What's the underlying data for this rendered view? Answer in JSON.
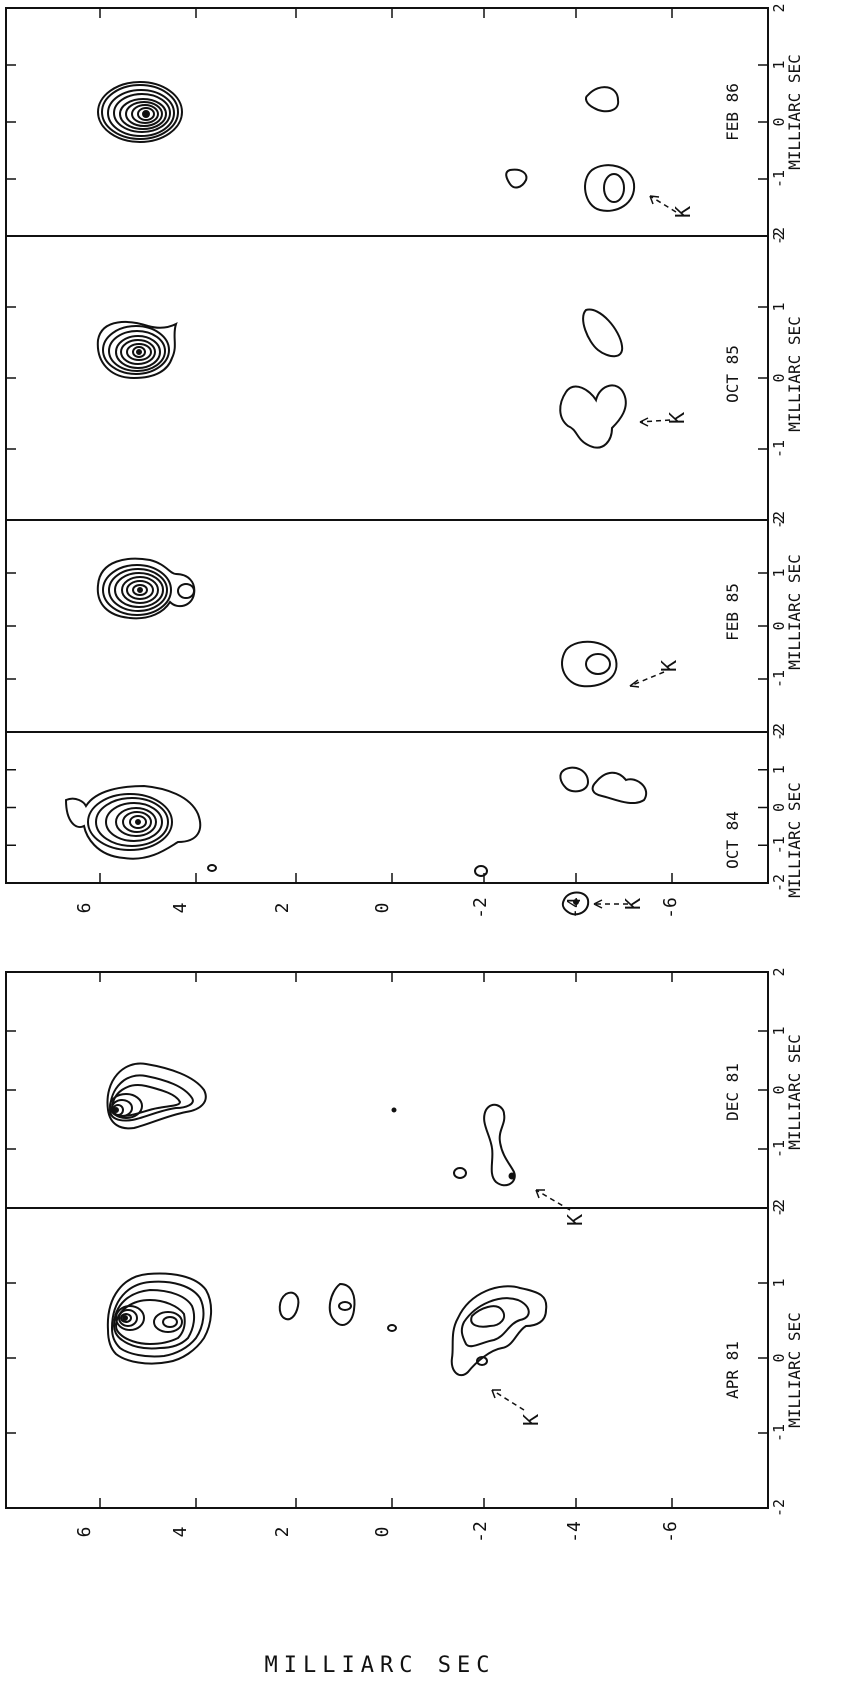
{
  "figure": {
    "y_axis_label": "MILLIARC SEC",
    "y_ticks": [
      "6",
      "4",
      "2",
      "0",
      "-2",
      "-4",
      "-6"
    ],
    "x_ticks": [
      "2",
      "1",
      "0",
      "-1",
      "-2"
    ],
    "x_axis_label": "MILLIARC SEC",
    "component_label": "K",
    "panels": [
      {
        "id": "feb86",
        "epoch": "FEB 86"
      },
      {
        "id": "oct85",
        "epoch": "OCT 85"
      },
      {
        "id": "feb85",
        "epoch": "FEB 85"
      },
      {
        "id": "oct84",
        "epoch": "OCT 84"
      },
      {
        "id": "dec81",
        "epoch": "DEC 81"
      },
      {
        "id": "apr81",
        "epoch": "APR 81"
      }
    ]
  }
}
